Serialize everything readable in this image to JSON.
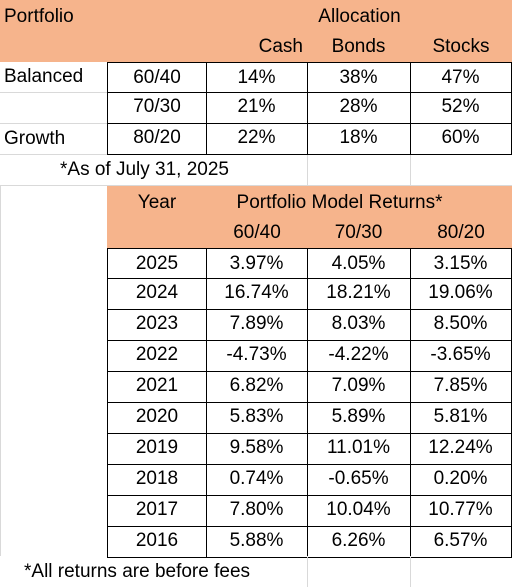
{
  "allocation": {
    "header": {
      "portfolio": "Portfolio",
      "allocation": "Allocation"
    },
    "columns": [
      "Cash",
      "Bonds",
      "Stocks"
    ],
    "rows": [
      {
        "name": "Balanced",
        "mix": "60/40",
        "values": [
          "14%",
          "38%",
          "47%"
        ]
      },
      {
        "name": "",
        "mix": "70/30",
        "values": [
          "21%",
          "28%",
          "52%"
        ]
      },
      {
        "name": "Growth",
        "mix": "80/20",
        "values": [
          "22%",
          "18%",
          "60%"
        ]
      }
    ],
    "note": "*As of July 31, 2025"
  },
  "returns": {
    "header": {
      "year": "Year",
      "title": "Portfolio Model Returns*"
    },
    "columns": [
      "60/40",
      "70/30",
      "80/20"
    ],
    "rows": [
      {
        "year": "2025",
        "values": [
          "3.97%",
          "4.05%",
          "3.15%"
        ]
      },
      {
        "year": "2024",
        "values": [
          "16.74%",
          "18.21%",
          "19.06%"
        ]
      },
      {
        "year": "2023",
        "values": [
          "7.89%",
          "8.03%",
          "8.50%"
        ]
      },
      {
        "year": "2022",
        "values": [
          "-4.73%",
          "-4.22%",
          "-3.65%"
        ]
      },
      {
        "year": "2021",
        "values": [
          "6.82%",
          "7.09%",
          "7.85%"
        ]
      },
      {
        "year": "2020",
        "values": [
          "5.83%",
          "5.89%",
          "5.81%"
        ]
      },
      {
        "year": "2019",
        "values": [
          "9.58%",
          "11.01%",
          "12.24%"
        ]
      },
      {
        "year": "2018",
        "values": [
          "0.74%",
          "-0.65%",
          "0.20%"
        ]
      },
      {
        "year": "2017",
        "values": [
          "7.80%",
          "10.04%",
          "10.77%"
        ]
      },
      {
        "year": "2016",
        "values": [
          "5.88%",
          "6.26%",
          "6.57%"
        ]
      }
    ],
    "note": "*All returns are before fees"
  },
  "colors": {
    "header_fill": "#f6b48c",
    "gridline": "#d9d9d9",
    "border": "#000000"
  }
}
